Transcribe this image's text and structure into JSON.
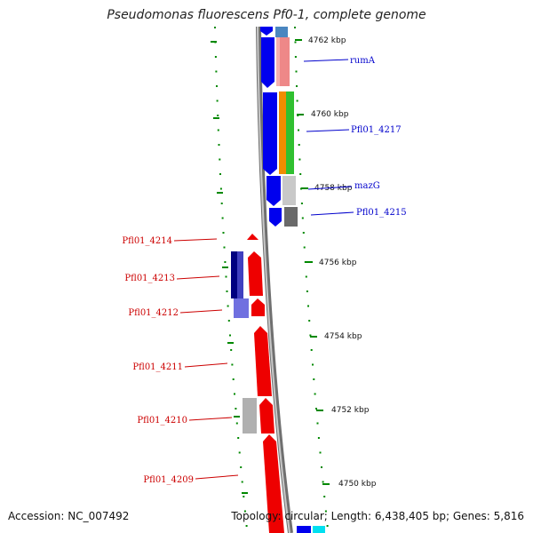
{
  "title": "Pseudomonas fluorescens Pf0-1, complete genome",
  "accession": "Accession: NC_007492",
  "summary": "Topology: circular; Length: 6,438,405 bp; Genes: 5,816",
  "colors": {
    "forward_label": "#0000cc",
    "reverse_label": "#cc0000",
    "forward_cds": "#0000ee",
    "reverse_cds": "#ee0000",
    "backbone": "#888888",
    "tick": "#008800"
  },
  "ticks": [
    {
      "label": "4762 kbp"
    },
    {
      "label": "4760 kbp"
    },
    {
      "label": "4758 kbp"
    },
    {
      "label": "4756 kbp"
    },
    {
      "label": "4754 kbp"
    },
    {
      "label": "4752 kbp"
    },
    {
      "label": "4750 kbp"
    }
  ],
  "forward_genes": [
    {
      "name": "rumA",
      "strand": "forward"
    },
    {
      "name": "Pfl01_4217",
      "strand": "forward"
    },
    {
      "name": "mazG",
      "strand": "forward"
    },
    {
      "name": "Pfl01_4215",
      "strand": "forward"
    }
  ],
  "reverse_genes": [
    {
      "name": "Pfl01_4214",
      "strand": "reverse"
    },
    {
      "name": "Pfl01_4213",
      "strand": "reverse"
    },
    {
      "name": "Pfl01_4212",
      "strand": "reverse"
    },
    {
      "name": "Pfl01_4211",
      "strand": "reverse"
    },
    {
      "name": "Pfl01_4210",
      "strand": "reverse"
    },
    {
      "name": "Pfl01_4209",
      "strand": "reverse"
    }
  ]
}
